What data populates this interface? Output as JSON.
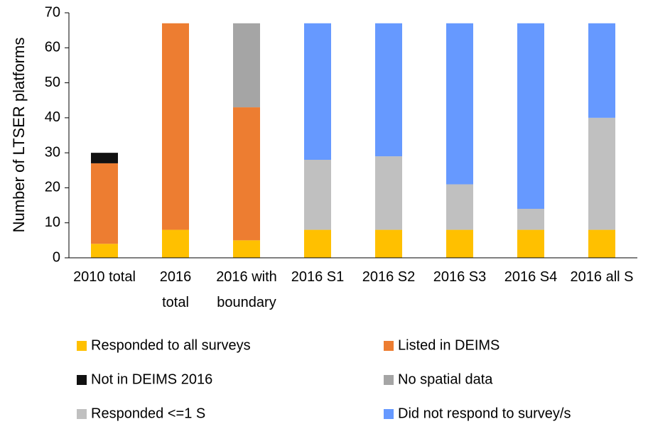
{
  "chart_data": {
    "type": "stacked-bar",
    "ylabel": "Number of LTSER platforms",
    "categories": [
      "2010 total",
      "2016\ntotal",
      "2016 with\nboundary",
      "2016  S1",
      "2016  S2",
      "2016  S3",
      "2016  S4",
      "2016 all S"
    ],
    "series": [
      {
        "name": "Responded to all surveys",
        "color": "#ffc000",
        "values": [
          4,
          8,
          5,
          8,
          8,
          8,
          8,
          8
        ]
      },
      {
        "name": "Listed in DEIMS",
        "color": "#ed7d31",
        "values": [
          23,
          59,
          38,
          null,
          null,
          null,
          null,
          null
        ]
      },
      {
        "name": "Not in DEIMS 2016",
        "color": "#111111",
        "values": [
          3,
          null,
          null,
          null,
          null,
          null,
          null,
          null
        ]
      },
      {
        "name": "No spatial data",
        "color": "#a5a5a5",
        "values": [
          null,
          null,
          24,
          null,
          null,
          null,
          null,
          null
        ]
      },
      {
        "name": "Responded <=1 S",
        "color": "#c0c0c0",
        "values": [
          null,
          null,
          null,
          20,
          21,
          13,
          6,
          32
        ]
      },
      {
        "name": "Did not respond to survey/s",
        "color": "#6699ff",
        "values": [
          null,
          null,
          null,
          39,
          38,
          46,
          53,
          27
        ]
      }
    ],
    "ylim": [
      0,
      70
    ],
    "yticks": [
      0,
      10,
      20,
      30,
      40,
      50,
      60,
      70
    ],
    "grid": false
  }
}
